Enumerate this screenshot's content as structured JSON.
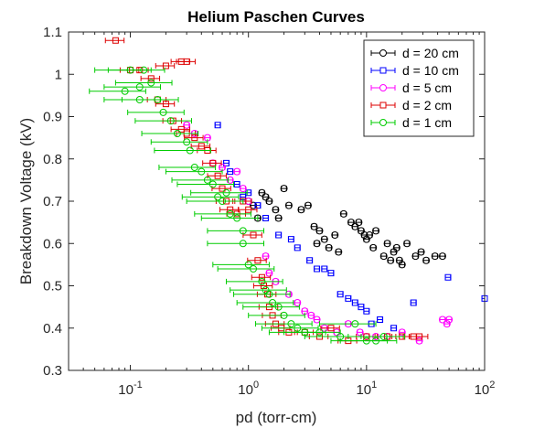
{
  "chart_data": {
    "type": "scatter",
    "title": "Helium Paschen Curves",
    "xlabel": "pd (torr-cm)",
    "ylabel": "Breakdown Voltage (kV)",
    "x_scale": "log",
    "xlim": [
      0.03,
      100
    ],
    "ylim": [
      0.3,
      1.1
    ],
    "x_ticks": [
      {
        "value": 0.1,
        "base": "10",
        "exp": "-1"
      },
      {
        "value": 1,
        "base": "10",
        "exp": "0"
      },
      {
        "value": 10,
        "base": "10",
        "exp": "1"
      },
      {
        "value": 100,
        "base": "10",
        "exp": "2"
      }
    ],
    "y_ticks": [
      "0.3",
      "0.4",
      "0.5",
      "0.6",
      "0.7",
      "0.8",
      "0.9",
      "1",
      "1.1"
    ],
    "grid": false,
    "legend_position": "top-right",
    "error_bars": "horizontal",
    "series": [
      {
        "name": "d = 20 cm",
        "color": "#000000",
        "marker": "circle",
        "err_pct": 0.05,
        "points": [
          [
            1.0,
            0.7
          ],
          [
            1.1,
            0.69
          ],
          [
            1.2,
            0.66
          ],
          [
            1.3,
            0.72
          ],
          [
            1.4,
            0.71
          ],
          [
            1.5,
            0.7
          ],
          [
            1.7,
            0.68
          ],
          [
            1.8,
            0.66
          ],
          [
            2.0,
            0.73
          ],
          [
            2.2,
            0.69
          ],
          [
            2.8,
            0.68
          ],
          [
            3.2,
            0.69
          ],
          [
            3.6,
            0.64
          ],
          [
            3.8,
            0.6
          ],
          [
            4.0,
            0.63
          ],
          [
            4.4,
            0.61
          ],
          [
            4.8,
            0.59
          ],
          [
            5.4,
            0.62
          ],
          [
            5.8,
            0.58
          ],
          [
            6.4,
            0.67
          ],
          [
            7.4,
            0.65
          ],
          [
            8.0,
            0.64
          ],
          [
            8.6,
            0.65
          ],
          [
            9.0,
            0.63
          ],
          [
            9.6,
            0.62
          ],
          [
            10.0,
            0.61
          ],
          [
            10.6,
            0.62
          ],
          [
            11.4,
            0.59
          ],
          [
            12.0,
            0.63
          ],
          [
            14.0,
            0.57
          ],
          [
            15.0,
            0.6
          ],
          [
            16.0,
            0.56
          ],
          [
            17.0,
            0.58
          ],
          [
            18.0,
            0.59
          ],
          [
            19.0,
            0.56
          ],
          [
            20.0,
            0.55
          ],
          [
            22.0,
            0.6
          ],
          [
            26.0,
            0.57
          ],
          [
            29.0,
            0.58
          ],
          [
            32.0,
            0.56
          ],
          [
            38.0,
            0.57
          ],
          [
            44.0,
            0.57
          ]
        ]
      },
      {
        "name": "d = 10 cm",
        "color": "#0000ff",
        "marker": "square",
        "err_pct": 0.05,
        "points": [
          [
            0.55,
            0.88
          ],
          [
            0.65,
            0.79
          ],
          [
            0.7,
            0.77
          ],
          [
            0.8,
            0.74
          ],
          [
            0.9,
            0.71
          ],
          [
            1.0,
            0.72
          ],
          [
            1.2,
            0.69
          ],
          [
            1.4,
            0.66
          ],
          [
            1.8,
            0.62
          ],
          [
            2.3,
            0.61
          ],
          [
            2.6,
            0.59
          ],
          [
            3.3,
            0.56
          ],
          [
            3.8,
            0.54
          ],
          [
            4.4,
            0.54
          ],
          [
            5.0,
            0.53
          ],
          [
            6.0,
            0.48
          ],
          [
            7.0,
            0.47
          ],
          [
            8.0,
            0.46
          ],
          [
            9.0,
            0.45
          ],
          [
            10.0,
            0.44
          ],
          [
            11.0,
            0.41
          ],
          [
            13.0,
            0.42
          ],
          [
            17.0,
            0.4
          ],
          [
            25.0,
            0.46
          ],
          [
            49.0,
            0.52
          ],
          [
            100.0,
            0.47
          ]
        ]
      },
      {
        "name": "d = 5 cm",
        "color": "#ff00ff",
        "marker": "circle",
        "err_pct": 0.05,
        "points": [
          [
            0.3,
            0.88
          ],
          [
            0.35,
            0.86
          ],
          [
            0.45,
            0.85
          ],
          [
            0.5,
            0.79
          ],
          [
            0.6,
            0.78
          ],
          [
            0.7,
            0.75
          ],
          [
            0.8,
            0.77
          ],
          [
            0.9,
            0.73
          ],
          [
            1.0,
            0.7
          ],
          [
            1.4,
            0.57
          ],
          [
            1.5,
            0.53
          ],
          [
            1.7,
            0.51
          ],
          [
            2.2,
            0.48
          ],
          [
            2.6,
            0.46
          ],
          [
            3.0,
            0.44
          ],
          [
            3.4,
            0.43
          ],
          [
            3.8,
            0.42
          ],
          [
            4.4,
            0.4
          ],
          [
            5.6,
            0.39
          ],
          [
            7.0,
            0.41
          ],
          [
            8.8,
            0.39
          ],
          [
            10.0,
            0.38
          ],
          [
            12.0,
            0.38
          ],
          [
            15.0,
            0.38
          ],
          [
            20.0,
            0.39
          ],
          [
            28.0,
            0.37
          ],
          [
            44.0,
            0.42
          ],
          [
            48.0,
            0.41
          ],
          [
            50.0,
            0.42
          ]
        ]
      },
      {
        "name": "d = 2 cm",
        "color": "#dd0000",
        "marker": "square",
        "err_pct": 0.18,
        "points": [
          [
            0.075,
            1.08
          ],
          [
            0.1,
            1.01
          ],
          [
            0.12,
            1.01
          ],
          [
            0.15,
            0.99
          ],
          [
            0.2,
            1.02
          ],
          [
            0.27,
            1.03
          ],
          [
            0.3,
            1.03
          ],
          [
            0.17,
            0.94
          ],
          [
            0.2,
            0.93
          ],
          [
            0.23,
            0.89
          ],
          [
            0.27,
            0.87
          ],
          [
            0.3,
            0.86
          ],
          [
            0.35,
            0.85
          ],
          [
            0.4,
            0.83
          ],
          [
            0.45,
            0.82
          ],
          [
            0.5,
            0.79
          ],
          [
            0.55,
            0.76
          ],
          [
            0.6,
            0.73
          ],
          [
            0.65,
            0.7
          ],
          [
            0.7,
            0.68
          ],
          [
            0.8,
            0.67
          ],
          [
            0.9,
            0.7
          ],
          [
            1.0,
            0.68
          ],
          [
            1.1,
            0.62
          ],
          [
            1.2,
            0.56
          ],
          [
            1.3,
            0.52
          ],
          [
            1.35,
            0.5
          ],
          [
            1.45,
            0.48
          ],
          [
            1.5,
            0.45
          ],
          [
            1.6,
            0.43
          ],
          [
            1.7,
            0.41
          ],
          [
            1.9,
            0.4
          ],
          [
            2.2,
            0.39
          ],
          [
            3.0,
            0.39
          ],
          [
            4.0,
            0.38
          ],
          [
            5.0,
            0.4
          ],
          [
            7.0,
            0.37
          ],
          [
            10.0,
            0.38
          ],
          [
            15.0,
            0.38
          ],
          [
            20.0,
            0.38
          ],
          [
            25.0,
            0.38
          ],
          [
            28.0,
            0.38
          ]
        ]
      },
      {
        "name": "d = 1 cm",
        "color": "#00cc00",
        "marker": "circle",
        "err_pct": 0.5,
        "points": [
          [
            0.09,
            0.96
          ],
          [
            0.1,
            1.01
          ],
          [
            0.12,
            0.97
          ],
          [
            0.13,
            1.01
          ],
          [
            0.15,
            0.98
          ],
          [
            0.12,
            0.94
          ],
          [
            0.17,
            0.94
          ],
          [
            0.19,
            0.91
          ],
          [
            0.22,
            0.89
          ],
          [
            0.25,
            0.86
          ],
          [
            0.3,
            0.84
          ],
          [
            0.32,
            0.82
          ],
          [
            0.35,
            0.78
          ],
          [
            0.4,
            0.77
          ],
          [
            0.45,
            0.75
          ],
          [
            0.5,
            0.74
          ],
          [
            0.55,
            0.71
          ],
          [
            0.6,
            0.7
          ],
          [
            0.65,
            0.72
          ],
          [
            0.7,
            0.67
          ],
          [
            0.8,
            0.66
          ],
          [
            0.9,
            0.63
          ],
          [
            0.9,
            0.6
          ],
          [
            1.0,
            0.55
          ],
          [
            1.1,
            0.54
          ],
          [
            1.3,
            0.51
          ],
          [
            1.4,
            0.49
          ],
          [
            1.5,
            0.48
          ],
          [
            1.6,
            0.46
          ],
          [
            1.8,
            0.45
          ],
          [
            2.0,
            0.43
          ],
          [
            2.3,
            0.41
          ],
          [
            2.6,
            0.4
          ],
          [
            3.0,
            0.39
          ],
          [
            4.0,
            0.39
          ],
          [
            6.0,
            0.38
          ],
          [
            8.0,
            0.41
          ],
          [
            10.0,
            0.37
          ],
          [
            12.0,
            0.37
          ],
          [
            14.0,
            0.38
          ]
        ]
      }
    ]
  }
}
